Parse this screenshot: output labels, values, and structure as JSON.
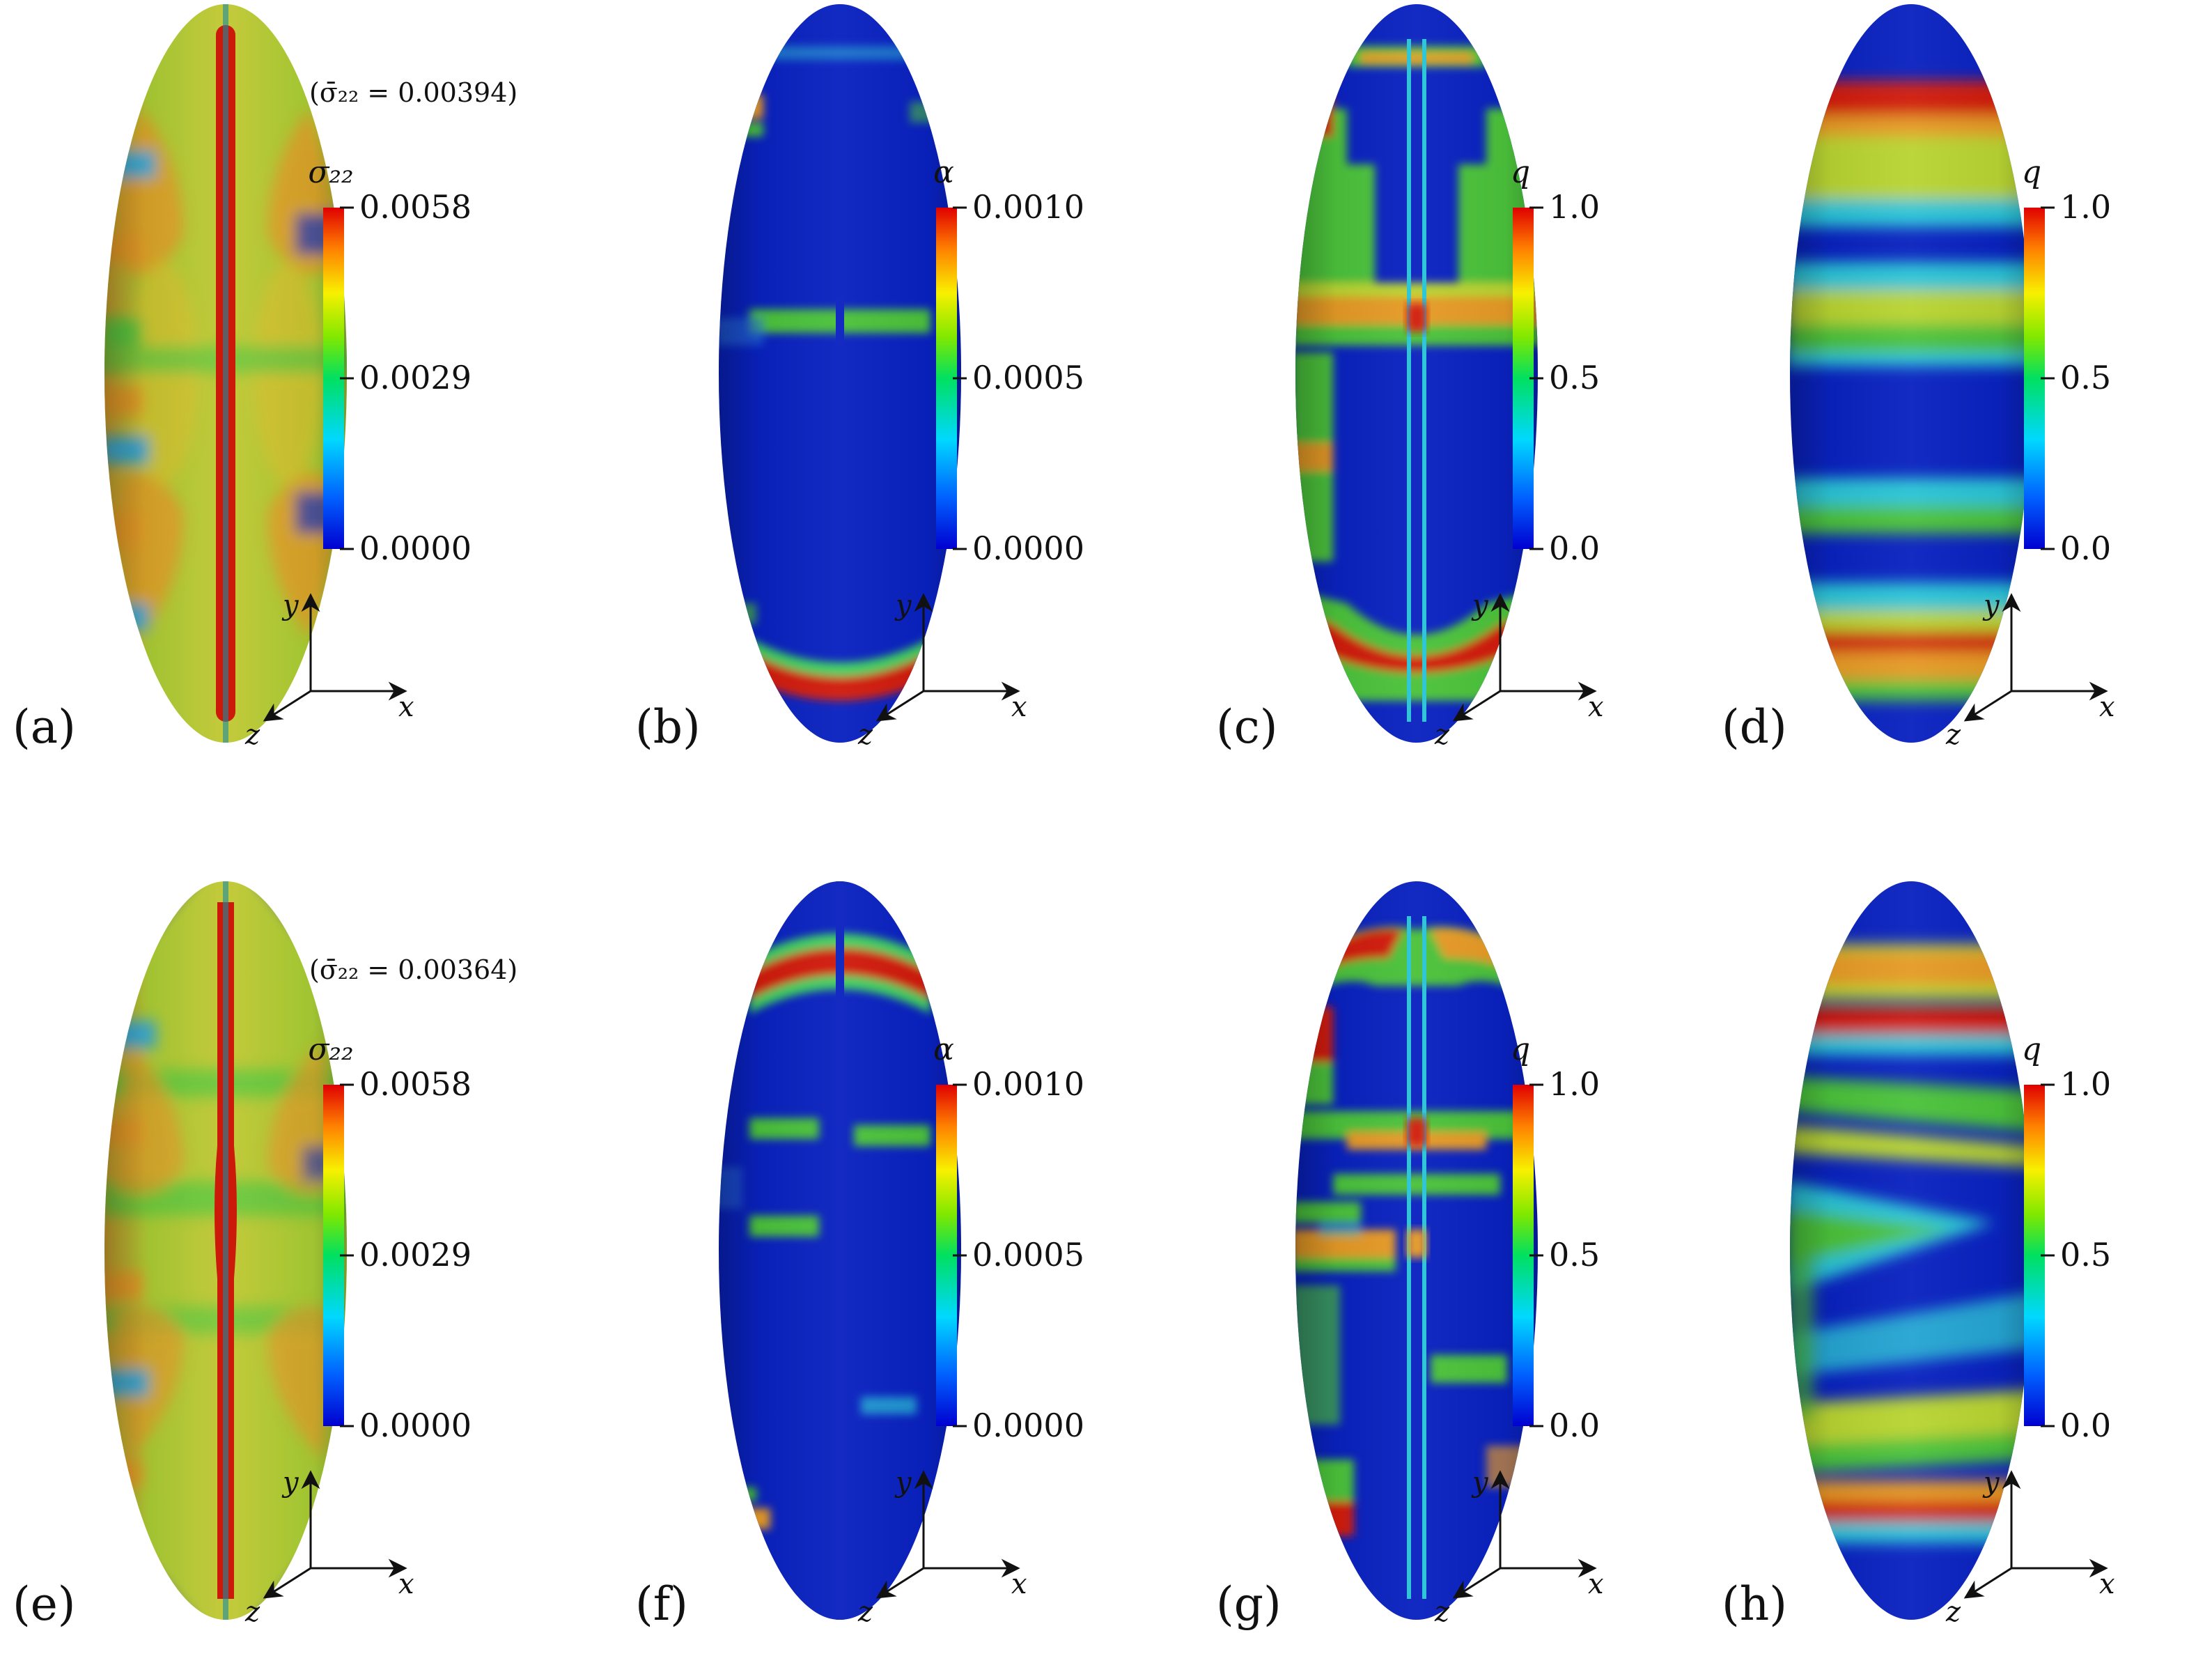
{
  "colors": {
    "jet": [
      "#0000c8",
      "#0050ff",
      "#00c8ff",
      "#00e070",
      "#40e000",
      "#f0f000",
      "#ff8800",
      "#e00000"
    ],
    "blue": "#0a22c0",
    "green": "#4cc23a",
    "yellow_green": "#b8d430",
    "orange": "#e59a26",
    "red": "#d01a0a",
    "cyan": "#29c4d6"
  },
  "panels": [
    {
      "id": "a",
      "label": "(a)",
      "field": "sigma22",
      "annotation": "(σ̄₂₂ = 0.00394)",
      "colorbar_title": "σ₂₂",
      "ticks": [
        "0.0058",
        "0.0029",
        "0.0000"
      ]
    },
    {
      "id": "b",
      "label": "(b)",
      "field": "alpha",
      "colorbar_title": "α",
      "ticks": [
        "0.0010",
        "0.0005",
        "0.0000"
      ]
    },
    {
      "id": "c",
      "label": "(c)",
      "field": "q",
      "colorbar_title": "q",
      "ticks": [
        "1.0",
        "0.5",
        "0.0"
      ]
    },
    {
      "id": "d",
      "label": "(d)",
      "field": "q",
      "colorbar_title": "q",
      "ticks": [
        "1.0",
        "0.5",
        "0.0"
      ]
    },
    {
      "id": "e",
      "label": "(e)",
      "field": "sigma22",
      "annotation": "(σ̄₂₂ = 0.00364)",
      "colorbar_title": "σ₂₂",
      "ticks": [
        "0.0058",
        "0.0029",
        "0.0000"
      ]
    },
    {
      "id": "f",
      "label": "(f)",
      "field": "alpha",
      "colorbar_title": "α",
      "ticks": [
        "0.0010",
        "0.0005",
        "0.0000"
      ]
    },
    {
      "id": "g",
      "label": "(g)",
      "field": "q",
      "colorbar_title": "q",
      "ticks": [
        "1.0",
        "0.5",
        "0.0"
      ]
    },
    {
      "id": "h",
      "label": "(h)",
      "field": "q",
      "colorbar_title": "q",
      "ticks": [
        "1.0",
        "0.5",
        "0.0"
      ]
    }
  ],
  "axes_triad": {
    "x": "x",
    "y": "y",
    "z": "z"
  }
}
